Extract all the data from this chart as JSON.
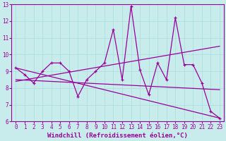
{
  "background_color": "#c8ecec",
  "line_color": "#990099",
  "xlim": [
    -0.5,
    23.5
  ],
  "ylim": [
    6,
    13
  ],
  "xticks": [
    0,
    1,
    2,
    3,
    4,
    5,
    6,
    7,
    8,
    9,
    10,
    11,
    12,
    13,
    14,
    15,
    16,
    17,
    18,
    19,
    20,
    21,
    22,
    23
  ],
  "yticks": [
    6,
    7,
    8,
    9,
    10,
    11,
    12,
    13
  ],
  "xlabel": "Windchill (Refroidissement éolien,°C)",
  "data_x": [
    0,
    1,
    2,
    3,
    4,
    5,
    6,
    7,
    8,
    9,
    10,
    11,
    12,
    13,
    14,
    15,
    16,
    17,
    18,
    19,
    20,
    21,
    22,
    23
  ],
  "data_y": [
    9.2,
    8.8,
    8.3,
    9.0,
    9.5,
    9.5,
    9.0,
    7.5,
    8.5,
    9.0,
    9.5,
    11.5,
    8.5,
    12.9,
    9.1,
    7.6,
    9.5,
    8.5,
    12.2,
    9.4,
    9.4,
    8.3,
    6.6,
    6.2
  ],
  "trend1_x": [
    0,
    23
  ],
  "trend1_y": [
    9.2,
    6.2
  ],
  "trend2_x": [
    0,
    23
  ],
  "trend2_y": [
    8.4,
    10.5
  ],
  "trend3_x": [
    0,
    23
  ],
  "trend3_y": [
    8.5,
    7.9
  ],
  "grid_color": "#aadddd",
  "tick_fontsize": 5.5,
  "xlabel_fontsize": 6.5
}
